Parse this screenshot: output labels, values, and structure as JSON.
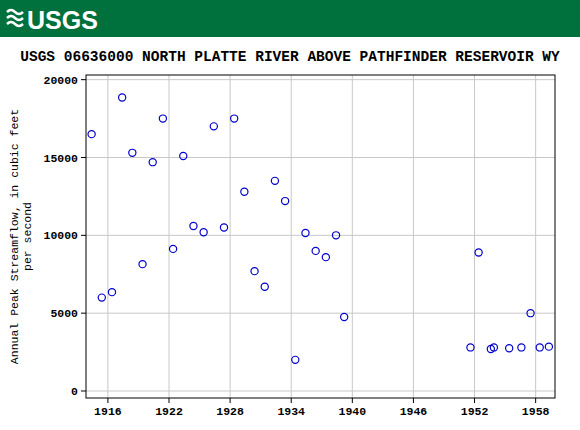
{
  "header": {
    "logo": "USGS"
  },
  "chart_data": {
    "type": "scatter",
    "title": "USGS 06636000 NORTH PLATTE RIVER ABOVE PATHFINDER RESERVOIR WY",
    "y_label": "Annual Peak Streamflow, in cubic feet\nper second",
    "x": [
      1914.4,
      1915.4,
      1916.4,
      1917.4,
      1918.4,
      1919.4,
      1920.4,
      1921.4,
      1922.4,
      1923.4,
      1924.4,
      1925.4,
      1926.4,
      1927.4,
      1928.4,
      1929.4,
      1930.4,
      1931.4,
      1932.4,
      1933.4,
      1934.4,
      1935.4,
      1936.4,
      1937.4,
      1938.4,
      1939.2,
      1951.6,
      1952.4,
      1953.6,
      1953.9,
      1955.4,
      1956.6,
      1957.5,
      1958.4,
      1959.3
    ],
    "values": [
      16500,
      6000,
      6350,
      18850,
      15300,
      8150,
      14700,
      17500,
      9130,
      15100,
      10600,
      10200,
      17000,
      10500,
      17500,
      12800,
      7700,
      6700,
      13500,
      12200,
      2000,
      10150,
      9000,
      8600,
      10000,
      4750,
      2800,
      8900,
      2700,
      2800,
      2750,
      2800,
      5000,
      2800,
      2850
    ],
    "color": "#0000cc",
    "marker": "open-circle",
    "xlim": [
      1913.85,
      1959.9
    ],
    "xticks": [
      1916,
      1922,
      1928,
      1934,
      1940,
      1946,
      1952,
      1958
    ],
    "ylim": [
      -450,
      20300
    ],
    "yticks": [
      0,
      5000,
      10000,
      15000,
      20000
    ],
    "grid": true
  }
}
